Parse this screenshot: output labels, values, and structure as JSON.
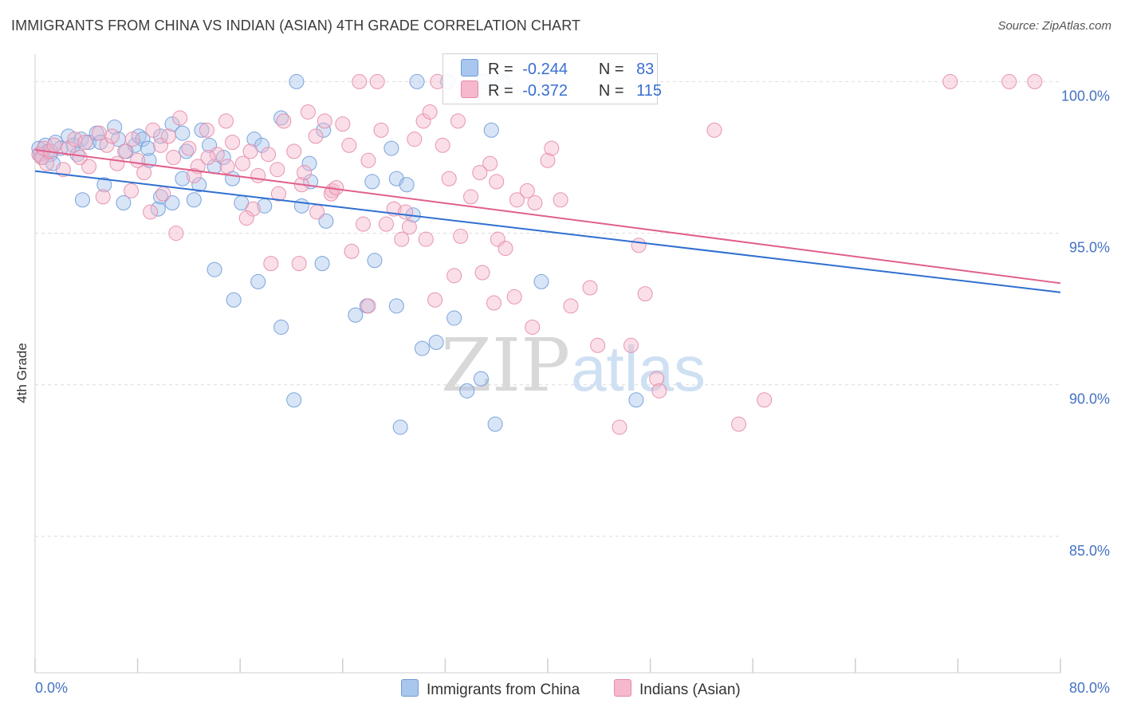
{
  "title": "IMMIGRANTS FROM CHINA VS INDIAN (ASIAN) 4TH GRADE CORRELATION CHART",
  "source": "Source: ZipAtlas.com",
  "watermark": {
    "zip": "ZIP",
    "atlas": "atlas"
  },
  "legend": {
    "r_label": "R =",
    "n_label": "N =",
    "rows": [
      {
        "r": "-0.244",
        "n": "83"
      },
      {
        "r": "-0.372",
        "n": "115"
      }
    ]
  },
  "colors": {
    "china_fill": "#a9c6ee",
    "china_stroke": "#6e9bd8",
    "china_line": "#2f6fd0",
    "indian_fill": "#f5b8cc",
    "indian_stroke": "#e68aa9",
    "indian_line": "#e0608c",
    "tick_text": "#4472c4",
    "grid": "#dcdcdc"
  },
  "chart_data": {
    "type": "scatter",
    "title": "IMMIGRANTS FROM CHINA VS INDIAN (ASIAN) 4TH GRADE CORRELATION CHART",
    "xlabel": "",
    "ylabel": "4th Grade",
    "xlim": [
      0,
      80
    ],
    "ylim": [
      80.5,
      100.8
    ],
    "x_tick_labels": [
      "0.0%",
      "80.0%"
    ],
    "y_ticks": [
      85,
      90,
      95,
      100
    ],
    "y_tick_labels": [
      "85.0%",
      "90.0%",
      "95.0%",
      "100.0%"
    ],
    "grid": true,
    "legend_position": "top-center",
    "series": [
      {
        "name": "Immigrants from China",
        "trend": {
          "x": [
            0,
            80
          ],
          "y": [
            97.05,
            93.05
          ]
        },
        "points": [
          [
            0.3,
            97.8
          ],
          [
            0.4,
            97.6
          ],
          [
            0.6,
            97.5
          ],
          [
            0.8,
            97.9
          ],
          [
            1.0,
            97.7
          ],
          [
            1.2,
            97.6
          ],
          [
            1.4,
            97.3
          ],
          [
            1.6,
            98.0
          ],
          [
            2.0,
            97.8
          ],
          [
            2.6,
            98.2
          ],
          [
            3.0,
            97.9
          ],
          [
            3.3,
            97.6
          ],
          [
            3.6,
            98.1
          ],
          [
            4.2,
            98.0
          ],
          [
            4.8,
            98.3
          ],
          [
            5.1,
            98.0
          ],
          [
            6.2,
            98.5
          ],
          [
            6.5,
            98.1
          ],
          [
            7.1,
            97.7
          ],
          [
            7.8,
            97.9
          ],
          [
            8.1,
            98.2
          ],
          [
            8.4,
            98.1
          ],
          [
            8.9,
            97.4
          ],
          [
            8.8,
            97.8
          ],
          [
            9.8,
            98.2
          ],
          [
            10.7,
            98.6
          ],
          [
            11.5,
            98.3
          ],
          [
            11.8,
            97.7
          ],
          [
            13.0,
            98.4
          ],
          [
            13.6,
            97.9
          ],
          [
            14.0,
            97.2
          ],
          [
            14.7,
            97.5
          ],
          [
            17.1,
            98.1
          ],
          [
            17.7,
            97.9
          ],
          [
            19.2,
            98.8
          ],
          [
            21.4,
            97.3
          ],
          [
            22.5,
            98.4
          ],
          [
            3.7,
            96.1
          ],
          [
            5.4,
            96.6
          ],
          [
            6.9,
            96.0
          ],
          [
            9.6,
            95.8
          ],
          [
            9.8,
            96.2
          ],
          [
            10.7,
            96.0
          ],
          [
            11.5,
            96.8
          ],
          [
            12.4,
            96.1
          ],
          [
            12.8,
            96.6
          ],
          [
            15.4,
            96.8
          ],
          [
            16.1,
            96.0
          ],
          [
            17.9,
            95.9
          ],
          [
            20.8,
            95.9
          ],
          [
            21.5,
            96.7
          ],
          [
            22.7,
            95.4
          ],
          [
            26.3,
            96.7
          ],
          [
            27.8,
            97.8
          ],
          [
            28.2,
            96.8
          ],
          [
            29.0,
            96.6
          ],
          [
            29.5,
            95.6
          ],
          [
            35.6,
            98.4
          ],
          [
            20.4,
            100.0
          ],
          [
            29.8,
            100.0
          ],
          [
            32.2,
            100.0
          ],
          [
            35.0,
            100.0
          ],
          [
            36.5,
            100.0
          ],
          [
            39.5,
            100.0
          ],
          [
            14.0,
            93.8
          ],
          [
            15.5,
            92.8
          ],
          [
            17.4,
            93.4
          ],
          [
            19.2,
            91.9
          ],
          [
            22.4,
            94.0
          ],
          [
            25.0,
            92.3
          ],
          [
            25.9,
            92.6
          ],
          [
            26.5,
            94.1
          ],
          [
            28.2,
            92.6
          ],
          [
            30.2,
            91.2
          ],
          [
            31.3,
            91.4
          ],
          [
            32.7,
            92.2
          ],
          [
            33.7,
            89.8
          ],
          [
            34.8,
            90.2
          ],
          [
            35.9,
            88.7
          ],
          [
            39.5,
            93.4
          ],
          [
            46.9,
            89.5
          ],
          [
            20.2,
            89.5
          ],
          [
            28.5,
            88.6
          ]
        ]
      },
      {
        "name": "Indians (Asian)",
        "trend": {
          "x": [
            0,
            80
          ],
          "y": [
            97.75,
            93.35
          ]
        },
        "points": [
          [
            0.3,
            97.6
          ],
          [
            0.5,
            97.5
          ],
          [
            0.7,
            97.8
          ],
          [
            0.9,
            97.3
          ],
          [
            1.2,
            97.7
          ],
          [
            1.5,
            97.9
          ],
          [
            2.2,
            97.1
          ],
          [
            2.6,
            97.8
          ],
          [
            3.1,
            98.1
          ],
          [
            3.5,
            97.5
          ],
          [
            3.9,
            98.0
          ],
          [
            4.2,
            97.2
          ],
          [
            5.0,
            98.3
          ],
          [
            5.6,
            97.9
          ],
          [
            6.0,
            98.2
          ],
          [
            6.4,
            97.3
          ],
          [
            7.0,
            97.7
          ],
          [
            7.6,
            98.1
          ],
          [
            8.0,
            97.4
          ],
          [
            8.5,
            97.0
          ],
          [
            9.2,
            98.4
          ],
          [
            9.8,
            97.9
          ],
          [
            10.4,
            98.2
          ],
          [
            10.8,
            97.5
          ],
          [
            11.3,
            98.8
          ],
          [
            12.0,
            97.8
          ],
          [
            12.7,
            97.2
          ],
          [
            13.4,
            98.4
          ],
          [
            14.2,
            97.6
          ],
          [
            14.9,
            98.7
          ],
          [
            15.4,
            98.0
          ],
          [
            16.2,
            97.3
          ],
          [
            16.8,
            97.7
          ],
          [
            17.4,
            96.9
          ],
          [
            18.2,
            97.6
          ],
          [
            18.9,
            97.1
          ],
          [
            19.4,
            98.7
          ],
          [
            20.2,
            97.7
          ],
          [
            20.8,
            96.6
          ],
          [
            21.3,
            99.0
          ],
          [
            21.9,
            98.2
          ],
          [
            22.6,
            98.7
          ],
          [
            23.2,
            96.4
          ],
          [
            24.0,
            98.6
          ],
          [
            24.5,
            97.9
          ],
          [
            25.3,
            100.0
          ],
          [
            26.7,
            100.0
          ],
          [
            27.4,
            95.3
          ],
          [
            28.0,
            95.8
          ],
          [
            28.6,
            94.8
          ],
          [
            29.2,
            95.2
          ],
          [
            30.3,
            98.7
          ],
          [
            30.8,
            99.0
          ],
          [
            31.4,
            100.0
          ],
          [
            32.3,
            96.8
          ],
          [
            33.2,
            94.9
          ],
          [
            34.0,
            96.2
          ],
          [
            35.5,
            97.3
          ],
          [
            36.1,
            94.8
          ],
          [
            36.7,
            94.5
          ],
          [
            37.6,
            96.1
          ],
          [
            38.4,
            96.4
          ],
          [
            39.0,
            96.0
          ],
          [
            40.0,
            97.4
          ],
          [
            40.3,
            97.8
          ],
          [
            41.0,
            96.1
          ],
          [
            10.0,
            96.3
          ],
          [
            12.4,
            96.9
          ],
          [
            13.5,
            97.5
          ],
          [
            17.0,
            95.8
          ],
          [
            18.4,
            94.0
          ],
          [
            20.6,
            94.0
          ],
          [
            23.1,
            96.3
          ],
          [
            24.7,
            94.4
          ],
          [
            25.6,
            95.3
          ],
          [
            26.0,
            92.6
          ],
          [
            28.9,
            95.7
          ],
          [
            30.5,
            94.8
          ],
          [
            31.2,
            92.8
          ],
          [
            32.7,
            93.6
          ],
          [
            34.9,
            93.7
          ],
          [
            35.8,
            92.7
          ],
          [
            37.4,
            92.9
          ],
          [
            38.8,
            91.9
          ],
          [
            41.8,
            92.6
          ],
          [
            43.3,
            93.2
          ],
          [
            43.9,
            91.3
          ],
          [
            45.6,
            88.6
          ],
          [
            46.5,
            91.3
          ],
          [
            47.6,
            93.0
          ],
          [
            48.5,
            90.2
          ],
          [
            48.7,
            89.8
          ],
          [
            47.1,
            94.6
          ],
          [
            53.0,
            98.4
          ],
          [
            54.9,
            88.7
          ],
          [
            56.9,
            89.5
          ],
          [
            71.4,
            100.0
          ],
          [
            76.0,
            100.0
          ],
          [
            78.0,
            100.0
          ],
          [
            39.9,
            100.0
          ],
          [
            16.5,
            95.5
          ],
          [
            15.0,
            97.2
          ],
          [
            22.0,
            95.7
          ],
          [
            29.6,
            98.1
          ],
          [
            33.0,
            98.7
          ],
          [
            34.7,
            97.0
          ],
          [
            27.0,
            98.4
          ],
          [
            19.0,
            96.3
          ],
          [
            21.0,
            97.0
          ],
          [
            26.0,
            97.4
          ],
          [
            7.5,
            96.4
          ],
          [
            11.0,
            95.0
          ],
          [
            23.5,
            96.5
          ],
          [
            31.8,
            97.9
          ],
          [
            36.0,
            96.7
          ],
          [
            9.0,
            95.7
          ],
          [
            5.3,
            96.2
          ]
        ]
      }
    ]
  },
  "bottom_legend": [
    "Immigrants from China",
    "Indians (Asian)"
  ]
}
